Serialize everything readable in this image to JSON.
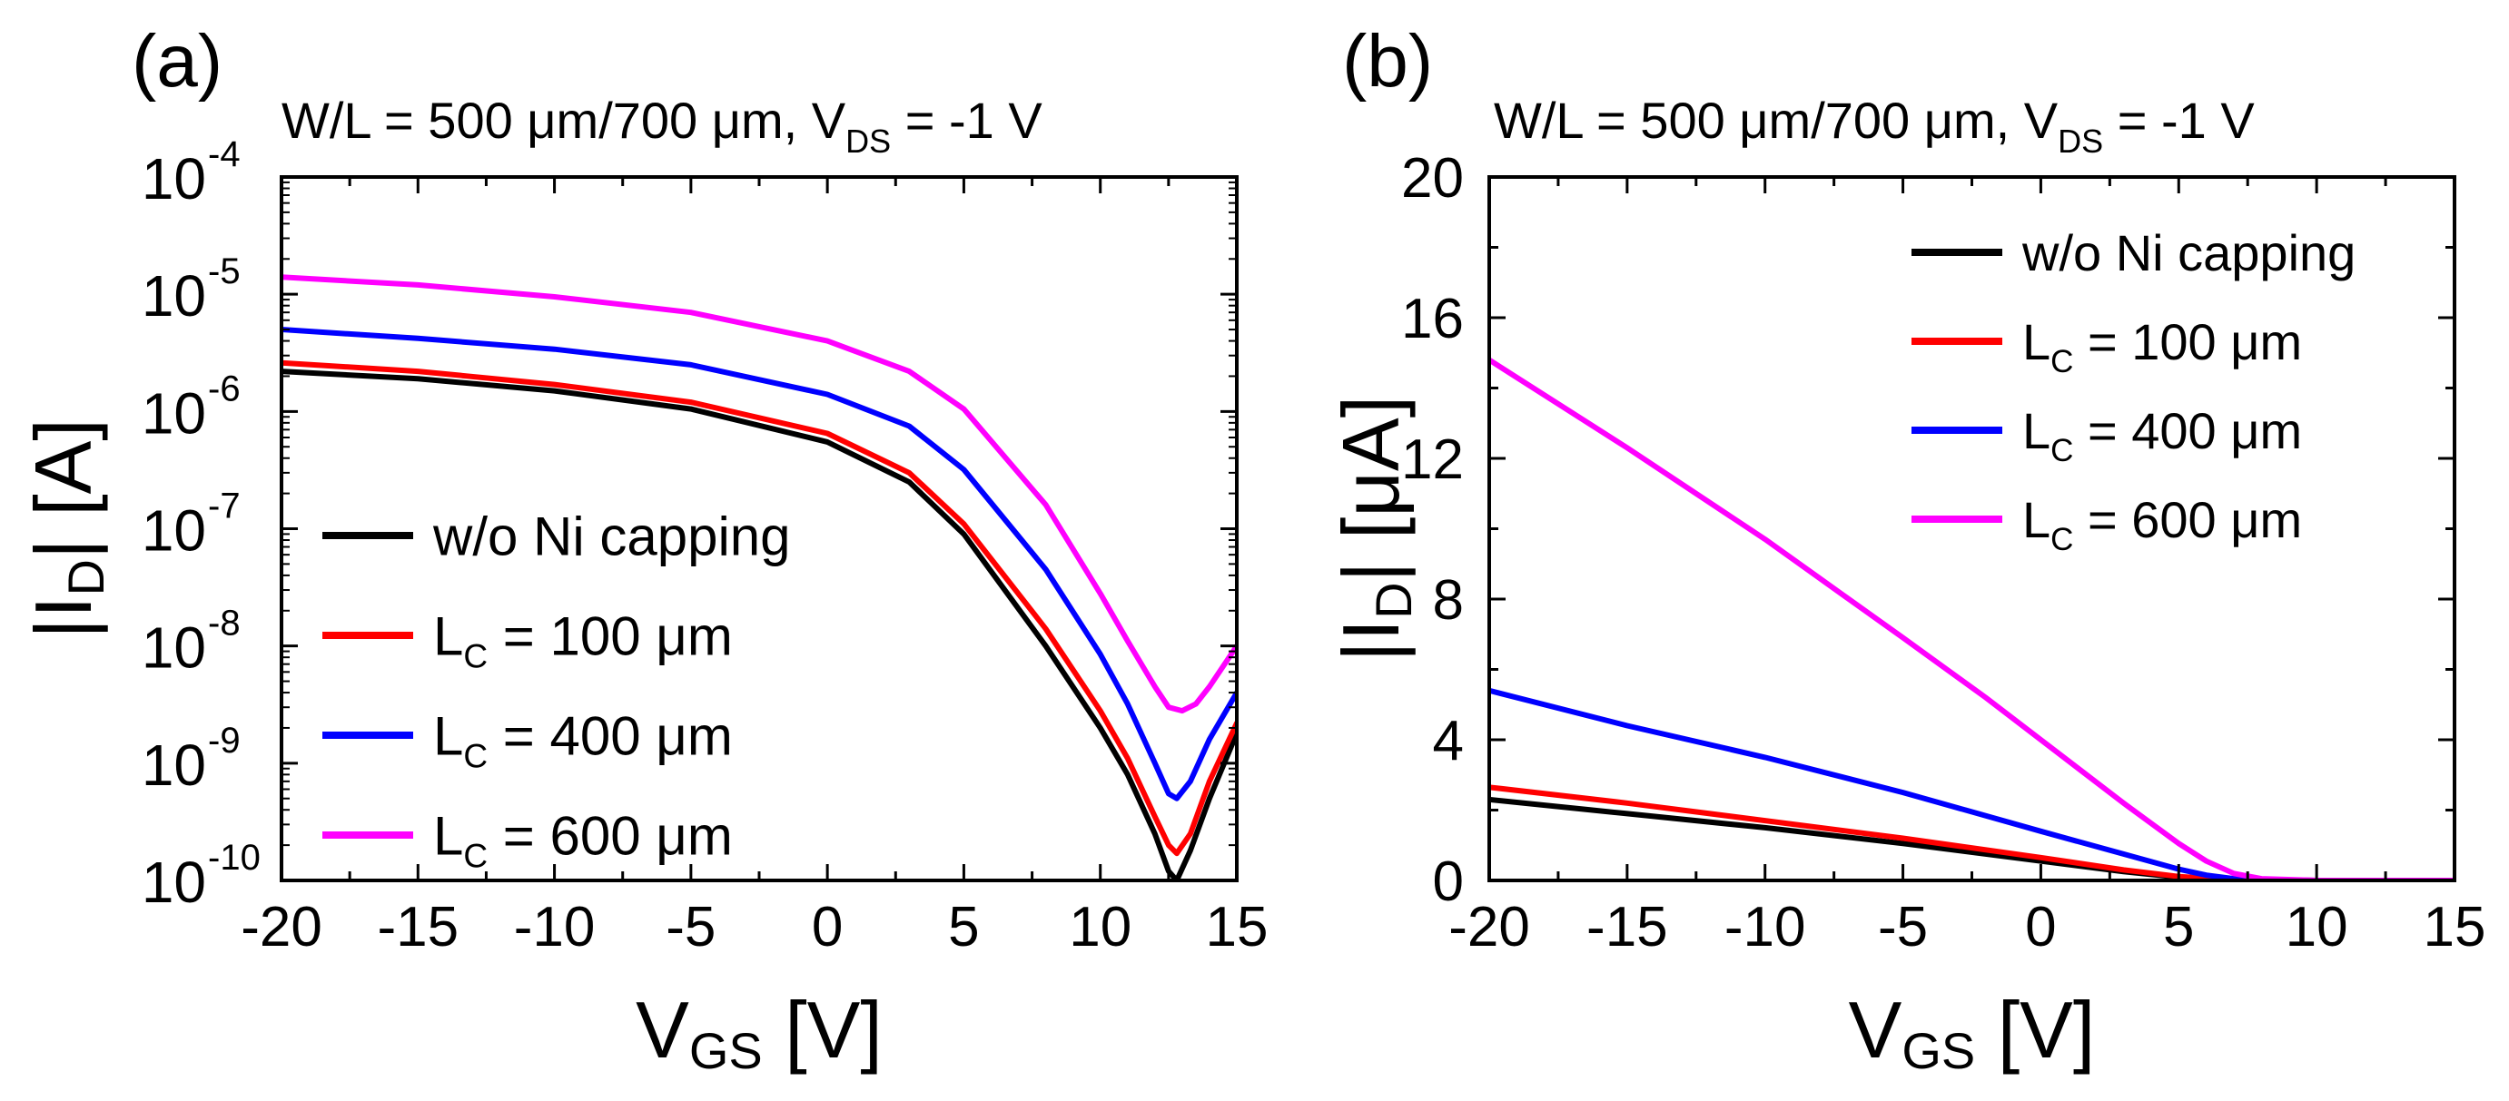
{
  "figure": {
    "description_free": true
  },
  "chart_data": [
    {
      "type": "line",
      "panel_label": "(a)",
      "title_parts": {
        "main": "W/L = 500 μm/700 μm, V",
        "sub": "DS",
        "tail": " = -1 V"
      },
      "xlabel": {
        "main": "V",
        "sub": "GS",
        "tail": " [V]"
      },
      "ylabel": {
        "pre": "|I",
        "sub": "D",
        "tail": "| [A]"
      },
      "yscale": "log",
      "xlim": [
        -20,
        15
      ],
      "ylim_exp": [
        -10,
        -4
      ],
      "xticks": [
        "-20",
        "-15",
        "-10",
        "-5",
        "0",
        "5",
        "10",
        "15"
      ],
      "xtick_values": [
        -20,
        -15,
        -10,
        -5,
        0,
        5,
        10,
        15
      ],
      "yticks": [
        {
          "base": "10",
          "exp": "-10"
        },
        {
          "base": "10",
          "exp": "-9"
        },
        {
          "base": "10",
          "exp": "-8"
        },
        {
          "base": "10",
          "exp": "-7"
        },
        {
          "base": "10",
          "exp": "-6"
        },
        {
          "base": "10",
          "exp": "-5"
        },
        {
          "base": "10",
          "exp": "-4"
        }
      ],
      "ytick_values": [
        -10,
        -9,
        -8,
        -7,
        -6,
        -5,
        -4
      ],
      "legend_position": "bottom-left",
      "legend": [
        {
          "text": "w/o Ni capping",
          "sub": "",
          "tail": "",
          "color": "#000000"
        },
        {
          "text": "L",
          "sub": "C",
          "tail": " = 100 μm",
          "color": "#ff0000"
        },
        {
          "text": "L",
          "sub": "C",
          "tail": " = 400 μm",
          "color": "#0000ff"
        },
        {
          "text": "L",
          "sub": "C",
          "tail": " = 600 μm",
          "color": "#ff00ff"
        }
      ],
      "series": [
        {
          "name": "w/o Ni capping",
          "color": "#000000",
          "x": [
            -20,
            -15,
            -10,
            -5,
            0,
            3,
            5,
            8,
            10,
            11,
            12,
            12.5,
            12.8,
            13.3,
            14,
            15
          ],
          "values": [
            2.2e-06,
            1.9e-06,
            1.5e-06,
            1.05e-06,
            5.5e-07,
            2.5e-07,
            9e-08,
            1e-08,
            2e-09,
            8e-10,
            2.5e-10,
            1.2e-10,
            1e-10,
            1.8e-10,
            5e-10,
            1.8e-09
          ]
        },
        {
          "name": "L_C = 100 μm",
          "color": "#ff0000",
          "x": [
            -20,
            -15,
            -10,
            -5,
            0,
            3,
            5,
            8,
            10,
            11,
            12,
            12.5,
            12.8,
            13.3,
            14,
            15
          ],
          "values": [
            2.6e-06,
            2.2e-06,
            1.7e-06,
            1.2e-06,
            6.5e-07,
            3e-07,
            1.1e-07,
            1.4e-08,
            2.8e-09,
            1.1e-09,
            3.5e-10,
            2e-10,
            1.7e-10,
            2.5e-10,
            7e-10,
            2.2e-09
          ]
        },
        {
          "name": "L_C = 400 μm",
          "color": "#0000ff",
          "x": [
            -20,
            -15,
            -10,
            -5,
            0,
            3,
            5,
            8,
            10,
            11,
            12,
            12.5,
            12.8,
            13.3,
            14,
            15
          ],
          "values": [
            5e-06,
            4.2e-06,
            3.4e-06,
            2.5e-06,
            1.4e-06,
            7.5e-07,
            3.2e-07,
            4.5e-08,
            8.5e-09,
            3.2e-09,
            1e-09,
            5.5e-10,
            5e-10,
            7e-10,
            1.6e-09,
            4e-09
          ]
        },
        {
          "name": "L_C = 600 μm",
          "color": "#ff00ff",
          "x": [
            -20,
            -15,
            -10,
            -5,
            0,
            3,
            5,
            8,
            10,
            11,
            12,
            12.5,
            13,
            13.5,
            14,
            15
          ],
          "values": [
            1.4e-05,
            1.2e-05,
            9.5e-06,
            7e-06,
            4e-06,
            2.2e-06,
            1.05e-06,
            1.6e-07,
            2.8e-08,
            1.1e-08,
            4.5e-09,
            3e-09,
            2.8e-09,
            3.2e-09,
            4.5e-09,
            1e-08
          ]
        }
      ]
    },
    {
      "type": "line",
      "panel_label": "(b)",
      "title_parts": {
        "main": "W/L = 500 μm/700 μm, V",
        "sub": "DS",
        "tail": " = -1 V"
      },
      "xlabel": {
        "main": "V",
        "sub": "GS",
        "tail": " [V]"
      },
      "ylabel": {
        "pre": "|I",
        "sub": "D",
        "tail": "| [μA]"
      },
      "yscale": "linear",
      "xlim": [
        -20,
        15
      ],
      "ylim": [
        0,
        20
      ],
      "xticks": [
        "-20",
        "-15",
        "-10",
        "-5",
        "0",
        "5",
        "10",
        "15"
      ],
      "xtick_values": [
        -20,
        -15,
        -10,
        -5,
        0,
        5,
        10,
        15
      ],
      "yticks": [
        "0",
        "4",
        "8",
        "12",
        "16",
        "20"
      ],
      "ytick_values": [
        0,
        4,
        8,
        12,
        16,
        20
      ],
      "legend_position": "top-right",
      "legend": [
        {
          "text": "w/o Ni capping",
          "sub": "",
          "tail": "",
          "color": "#000000"
        },
        {
          "text": "L",
          "sub": "C",
          "tail": " = 100 μm",
          "color": "#ff0000"
        },
        {
          "text": "L",
          "sub": "C",
          "tail": " = 400 μm",
          "color": "#0000ff"
        },
        {
          "text": "L",
          "sub": "C",
          "tail": " = 600 μm",
          "color": "#ff00ff"
        }
      ],
      "series": [
        {
          "name": "w/o Ni capping",
          "color": "#000000",
          "x": [
            -20,
            -15,
            -10,
            -5,
            0,
            3,
            5,
            6,
            8,
            10,
            15
          ],
          "values": [
            2.3,
            1.9,
            1.5,
            1.05,
            0.55,
            0.25,
            0.09,
            0.05,
            0.01,
            0.0,
            0.0
          ]
        },
        {
          "name": "L_C = 100 μm",
          "color": "#ff0000",
          "x": [
            -20,
            -15,
            -10,
            -5,
            0,
            3,
            5,
            6,
            8,
            10,
            15
          ],
          "values": [
            2.65,
            2.2,
            1.7,
            1.2,
            0.65,
            0.3,
            0.11,
            0.06,
            0.01,
            0.0,
            0.0
          ]
        },
        {
          "name": "L_C = 400 μm",
          "color": "#0000ff",
          "x": [
            -20,
            -15,
            -10,
            -5,
            0,
            3,
            5,
            6,
            7,
            8,
            10,
            15
          ],
          "values": [
            5.4,
            4.4,
            3.5,
            2.5,
            1.4,
            0.75,
            0.32,
            0.15,
            0.05,
            0.01,
            0.0,
            0.0
          ]
        },
        {
          "name": "L_C = 600 μm",
          "color": "#ff00ff",
          "x": [
            -20,
            -15,
            -10,
            -5,
            -2,
            0,
            3,
            5,
            6,
            7,
            8,
            10,
            15
          ],
          "values": [
            14.8,
            12.3,
            9.7,
            6.9,
            5.2,
            4.0,
            2.2,
            1.05,
            0.55,
            0.2,
            0.05,
            0.0,
            0.0
          ]
        }
      ]
    }
  ]
}
